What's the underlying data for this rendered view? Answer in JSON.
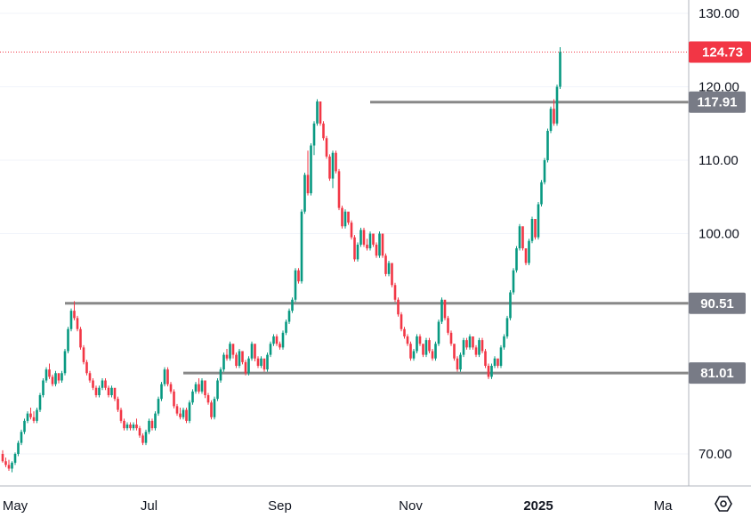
{
  "chart_data": {
    "type": "candlestick",
    "title": "",
    "xlabel": "",
    "ylabel": "",
    "ylim": [
      66.0,
      131.0
    ],
    "y_ticks": [
      {
        "value": 130,
        "label": "130.00"
      },
      {
        "value": 120,
        "label": "120.00"
      },
      {
        "value": 110,
        "label": "110.00"
      },
      {
        "value": 100,
        "label": "100.00"
      },
      {
        "value": 70,
        "label": "70.00"
      }
    ],
    "x_ticks": [
      {
        "label": "May",
        "candle_index": 4,
        "bold": false
      },
      {
        "label": "Jul",
        "candle_index": 47,
        "bold": false
      },
      {
        "label": "Sep",
        "candle_index": 89,
        "bold": false
      },
      {
        "label": "Nov",
        "candle_index": 131,
        "bold": false
      },
      {
        "label": "2025",
        "candle_index": 172,
        "bold": true
      },
      {
        "label": "Ma",
        "candle_index": 212,
        "bold": false
      }
    ],
    "horizontal_lines": [
      {
        "value": 117.91,
        "label": "117.91",
        "start_index": 118
      },
      {
        "value": 90.51,
        "label": "90.51",
        "start_index": 20
      },
      {
        "value": 81.01,
        "label": "81.01",
        "start_index": 58
      }
    ],
    "last_price": {
      "value": 124.73,
      "label": "124.73"
    },
    "candles": [
      [
        70.0,
        70.5,
        68.8,
        69.0
      ],
      [
        69.0,
        69.5,
        68.2,
        68.5
      ],
      [
        68.5,
        69.2,
        67.7,
        68.0
      ],
      [
        68.0,
        69.0,
        67.5,
        68.8
      ],
      [
        68.8,
        70.2,
        68.5,
        70.0
      ],
      [
        70.0,
        71.8,
        69.7,
        71.5
      ],
      [
        71.5,
        73.3,
        71.2,
        73.0
      ],
      [
        73.0,
        74.8,
        72.7,
        74.5
      ],
      [
        74.5,
        75.8,
        74.2,
        75.5
      ],
      [
        75.5,
        76.3,
        74.7,
        75.0
      ],
      [
        75.0,
        75.8,
        74.2,
        74.5
      ],
      [
        74.5,
        76.3,
        74.2,
        76.0
      ],
      [
        76.0,
        78.3,
        75.7,
        78.0
      ],
      [
        78.0,
        80.3,
        77.7,
        80.0
      ],
      [
        80.0,
        81.8,
        79.7,
        81.5
      ],
      [
        81.5,
        82.3,
        80.2,
        80.5
      ],
      [
        80.5,
        80.8,
        79.2,
        79.5
      ],
      [
        79.5,
        81.3,
        79.2,
        81.0
      ],
      [
        81.0,
        80.8,
        79.6,
        80.0
      ],
      [
        80.0,
        81.3,
        79.7,
        81.0
      ],
      [
        81.0,
        84.3,
        80.7,
        84.0
      ],
      [
        84.0,
        87.3,
        83.7,
        87.0
      ],
      [
        87.0,
        89.8,
        86.7,
        89.5
      ],
      [
        89.5,
        90.8,
        88.2,
        88.5
      ],
      [
        88.5,
        88.8,
        86.7,
        87.0
      ],
      [
        87.0,
        87.3,
        84.2,
        84.5
      ],
      [
        84.5,
        84.8,
        82.2,
        82.5
      ],
      [
        82.5,
        82.8,
        80.7,
        81.0
      ],
      [
        81.0,
        81.3,
        79.7,
        80.0
      ],
      [
        80.0,
        80.3,
        78.7,
        79.0
      ],
      [
        79.0,
        79.3,
        77.7,
        78.0
      ],
      [
        78.0,
        79.3,
        77.7,
        79.0
      ],
      [
        79.0,
        80.3,
        78.7,
        80.0
      ],
      [
        80.0,
        80.3,
        78.7,
        79.0
      ],
      [
        79.0,
        79.3,
        77.7,
        78.0
      ],
      [
        78.0,
        79.3,
        77.7,
        79.0
      ],
      [
        79.0,
        78.8,
        77.2,
        77.5
      ],
      [
        77.5,
        77.8,
        75.7,
        76.0
      ],
      [
        76.0,
        76.3,
        74.2,
        74.5
      ],
      [
        74.5,
        74.8,
        73.2,
        73.5
      ],
      [
        73.5,
        74.3,
        73.2,
        74.0
      ],
      [
        74.0,
        74.3,
        73.2,
        73.5
      ],
      [
        73.5,
        74.3,
        73.2,
        74.0
      ],
      [
        74.0,
        74.8,
        73.2,
        73.5
      ],
      [
        73.5,
        73.8,
        72.2,
        72.5
      ],
      [
        72.5,
        72.8,
        71.2,
        71.5
      ],
      [
        71.5,
        73.3,
        71.2,
        73.0
      ],
      [
        73.0,
        74.8,
        72.7,
        74.5
      ],
      [
        74.5,
        74.8,
        73.2,
        73.5
      ],
      [
        73.5,
        75.8,
        73.2,
        75.5
      ],
      [
        75.5,
        77.8,
        75.2,
        77.5
      ],
      [
        77.5,
        79.8,
        77.2,
        79.5
      ],
      [
        79.5,
        81.8,
        79.2,
        81.5
      ],
      [
        81.5,
        81.8,
        79.2,
        79.5
      ],
      [
        79.5,
        79.8,
        78.2,
        78.5
      ],
      [
        78.5,
        78.8,
        76.2,
        76.5
      ],
      [
        76.5,
        76.8,
        75.2,
        75.5
      ],
      [
        75.5,
        76.3,
        74.7,
        75.0
      ],
      [
        75.0,
        76.3,
        74.7,
        76.0
      ],
      [
        76.0,
        76.3,
        74.2,
        74.5
      ],
      [
        74.5,
        77.3,
        74.2,
        77.0
      ],
      [
        77.0,
        78.8,
        76.7,
        78.5
      ],
      [
        78.5,
        79.8,
        78.2,
        79.5
      ],
      [
        79.5,
        80.3,
        78.2,
        78.5
      ],
      [
        78.5,
        80.3,
        78.2,
        80.0
      ],
      [
        80.0,
        79.8,
        77.6,
        78.0
      ],
      [
        78.0,
        78.3,
        76.7,
        77.0
      ],
      [
        77.0,
        77.3,
        74.7,
        75.0
      ],
      [
        75.0,
        77.8,
        74.7,
        77.5
      ],
      [
        77.5,
        80.3,
        77.2,
        80.0
      ],
      [
        80.0,
        81.8,
        79.7,
        81.5
      ],
      [
        81.5,
        83.8,
        81.2,
        83.5
      ],
      [
        83.5,
        84.3,
        82.7,
        83.0
      ],
      [
        83.0,
        85.3,
        82.7,
        85.0
      ],
      [
        85.0,
        84.8,
        83.0,
        83.5
      ],
      [
        83.5,
        83.8,
        81.7,
        82.0
      ],
      [
        82.0,
        84.3,
        81.7,
        84.0
      ],
      [
        84.0,
        83.8,
        82.2,
        82.5
      ],
      [
        82.5,
        82.8,
        80.7,
        81.0
      ],
      [
        81.0,
        83.3,
        80.7,
        83.0
      ],
      [
        83.0,
        85.3,
        82.7,
        85.0
      ],
      [
        85.0,
        84.8,
        82.6,
        83.0
      ],
      [
        83.0,
        83.3,
        81.7,
        82.0
      ],
      [
        82.0,
        83.3,
        81.7,
        83.0
      ],
      [
        83.0,
        82.8,
        81.2,
        81.5
      ],
      [
        81.5,
        83.8,
        81.2,
        83.5
      ],
      [
        83.5,
        85.3,
        83.2,
        85.0
      ],
      [
        85.0,
        86.3,
        84.7,
        86.0
      ],
      [
        86.0,
        86.3,
        84.7,
        85.0
      ],
      [
        85.0,
        85.3,
        84.2,
        84.5
      ],
      [
        84.5,
        86.8,
        84.2,
        86.5
      ],
      [
        86.5,
        88.3,
        86.2,
        88.0
      ],
      [
        88.0,
        89.8,
        87.7,
        89.5
      ],
      [
        89.5,
        91.3,
        89.2,
        91.0
      ],
      [
        91.0,
        95.3,
        90.7,
        95.0
      ],
      [
        95.0,
        95.3,
        93.2,
        93.5
      ],
      [
        93.5,
        103.3,
        93.2,
        103.0
      ],
      [
        103.0,
        108.3,
        102.7,
        108.0
      ],
      [
        108.0,
        111.3,
        105.2,
        105.5
      ],
      [
        105.5,
        112.3,
        105.2,
        112.0
      ],
      [
        112.0,
        115.3,
        110.7,
        115.0
      ],
      [
        115.0,
        118.3,
        114.7,
        118.0
      ],
      [
        118.0,
        117.8,
        114.7,
        115.0
      ],
      [
        115.0,
        115.3,
        112.7,
        113.0
      ],
      [
        113.0,
        113.3,
        110.2,
        110.5
      ],
      [
        110.5,
        110.8,
        107.2,
        107.5
      ],
      [
        107.5,
        111.3,
        106.2,
        111.0
      ],
      [
        111.0,
        111.3,
        108.2,
        108.5
      ],
      [
        108.5,
        108.8,
        103.2,
        103.5
      ],
      [
        103.5,
        103.8,
        100.7,
        101.0
      ],
      [
        101.0,
        103.3,
        100.7,
        103.0
      ],
      [
        103.0,
        102.8,
        101.2,
        101.5
      ],
      [
        101.5,
        101.8,
        99.2,
        99.5
      ],
      [
        99.5,
        99.8,
        96.2,
        96.5
      ],
      [
        96.5,
        98.8,
        96.2,
        98.5
      ],
      [
        98.5,
        100.8,
        98.2,
        100.5
      ],
      [
        100.5,
        100.8,
        98.2,
        98.5
      ],
      [
        98.5,
        99.3,
        97.7,
        98.0
      ],
      [
        98.0,
        100.3,
        97.7,
        100.0
      ],
      [
        100.0,
        99.8,
        98.2,
        98.5
      ],
      [
        98.5,
        98.8,
        96.7,
        97.0
      ],
      [
        97.0,
        100.3,
        96.7,
        100.0
      ],
      [
        100.0,
        99.8,
        96.7,
        97.0
      ],
      [
        97.0,
        97.3,
        94.2,
        94.5
      ],
      [
        94.5,
        96.3,
        94.2,
        96.0
      ],
      [
        96.0,
        95.8,
        92.7,
        93.0
      ],
      [
        93.0,
        93.3,
        90.7,
        91.0
      ],
      [
        91.0,
        91.3,
        88.7,
        89.0
      ],
      [
        89.0,
        89.3,
        86.7,
        87.0
      ],
      [
        87.0,
        87.3,
        85.7,
        86.0
      ],
      [
        86.0,
        86.3,
        84.7,
        85.0
      ],
      [
        85.0,
        85.3,
        82.7,
        83.0
      ],
      [
        83.0,
        84.3,
        82.7,
        84.0
      ],
      [
        84.0,
        86.3,
        83.7,
        86.0
      ],
      [
        86.0,
        86.3,
        84.7,
        85.0
      ],
      [
        85.0,
        84.8,
        83.2,
        83.5
      ],
      [
        83.5,
        85.8,
        83.2,
        85.5
      ],
      [
        85.5,
        85.8,
        83.7,
        84.0
      ],
      [
        84.0,
        84.3,
        82.7,
        83.0
      ],
      [
        83.0,
        85.3,
        82.7,
        85.0
      ],
      [
        85.0,
        88.3,
        84.7,
        88.0
      ],
      [
        88.0,
        91.3,
        87.7,
        91.0
      ],
      [
        91.0,
        90.8,
        88.2,
        88.5
      ],
      [
        88.5,
        88.8,
        86.2,
        86.5
      ],
      [
        86.5,
        86.8,
        84.7,
        85.0
      ],
      [
        85.0,
        84.8,
        82.7,
        83.0
      ],
      [
        83.0,
        83.3,
        81.2,
        81.5
      ],
      [
        81.5,
        83.8,
        81.2,
        83.5
      ],
      [
        83.5,
        85.8,
        83.2,
        85.5
      ],
      [
        85.5,
        85.8,
        84.2,
        84.5
      ],
      [
        84.5,
        86.3,
        84.2,
        86.0
      ],
      [
        86.0,
        85.8,
        84.2,
        84.5
      ],
      [
        84.5,
        84.8,
        83.2,
        83.5
      ],
      [
        83.5,
        85.8,
        83.2,
        85.5
      ],
      [
        85.5,
        85.8,
        83.7,
        84.0
      ],
      [
        84.0,
        84.3,
        81.7,
        82.0
      ],
      [
        82.0,
        82.3,
        80.2,
        80.5
      ],
      [
        80.5,
        82.3,
        80.2,
        82.0
      ],
      [
        82.0,
        83.3,
        81.7,
        83.0
      ],
      [
        83.0,
        82.8,
        81.7,
        82.0
      ],
      [
        82.0,
        84.8,
        81.7,
        84.5
      ],
      [
        84.5,
        86.3,
        84.2,
        86.0
      ],
      [
        86.0,
        88.8,
        85.7,
        88.5
      ],
      [
        88.5,
        92.3,
        88.2,
        92.0
      ],
      [
        92.0,
        95.3,
        91.7,
        95.0
      ],
      [
        95.0,
        98.3,
        94.7,
        98.0
      ],
      [
        98.0,
        101.3,
        97.7,
        101.0
      ],
      [
        101.0,
        100.8,
        97.7,
        98.0
      ],
      [
        98.0,
        97.8,
        95.7,
        96.0
      ],
      [
        96.0,
        99.3,
        95.7,
        99.0
      ],
      [
        99.0,
        102.3,
        98.7,
        102.0
      ],
      [
        102.0,
        101.8,
        99.2,
        99.5
      ],
      [
        99.5,
        104.3,
        99.2,
        104.0
      ],
      [
        104.0,
        107.3,
        103.7,
        107.0
      ],
      [
        107.0,
        110.3,
        106.7,
        110.0
      ],
      [
        110.0,
        114.3,
        109.7,
        114.0
      ],
      [
        114.0,
        117.3,
        113.7,
        117.0
      ],
      [
        117.0,
        118.3,
        114.7,
        115.0
      ],
      [
        115.0,
        120.3,
        114.7,
        120.0
      ],
      [
        120.0,
        125.4,
        119.7,
        124.73
      ]
    ]
  }
}
